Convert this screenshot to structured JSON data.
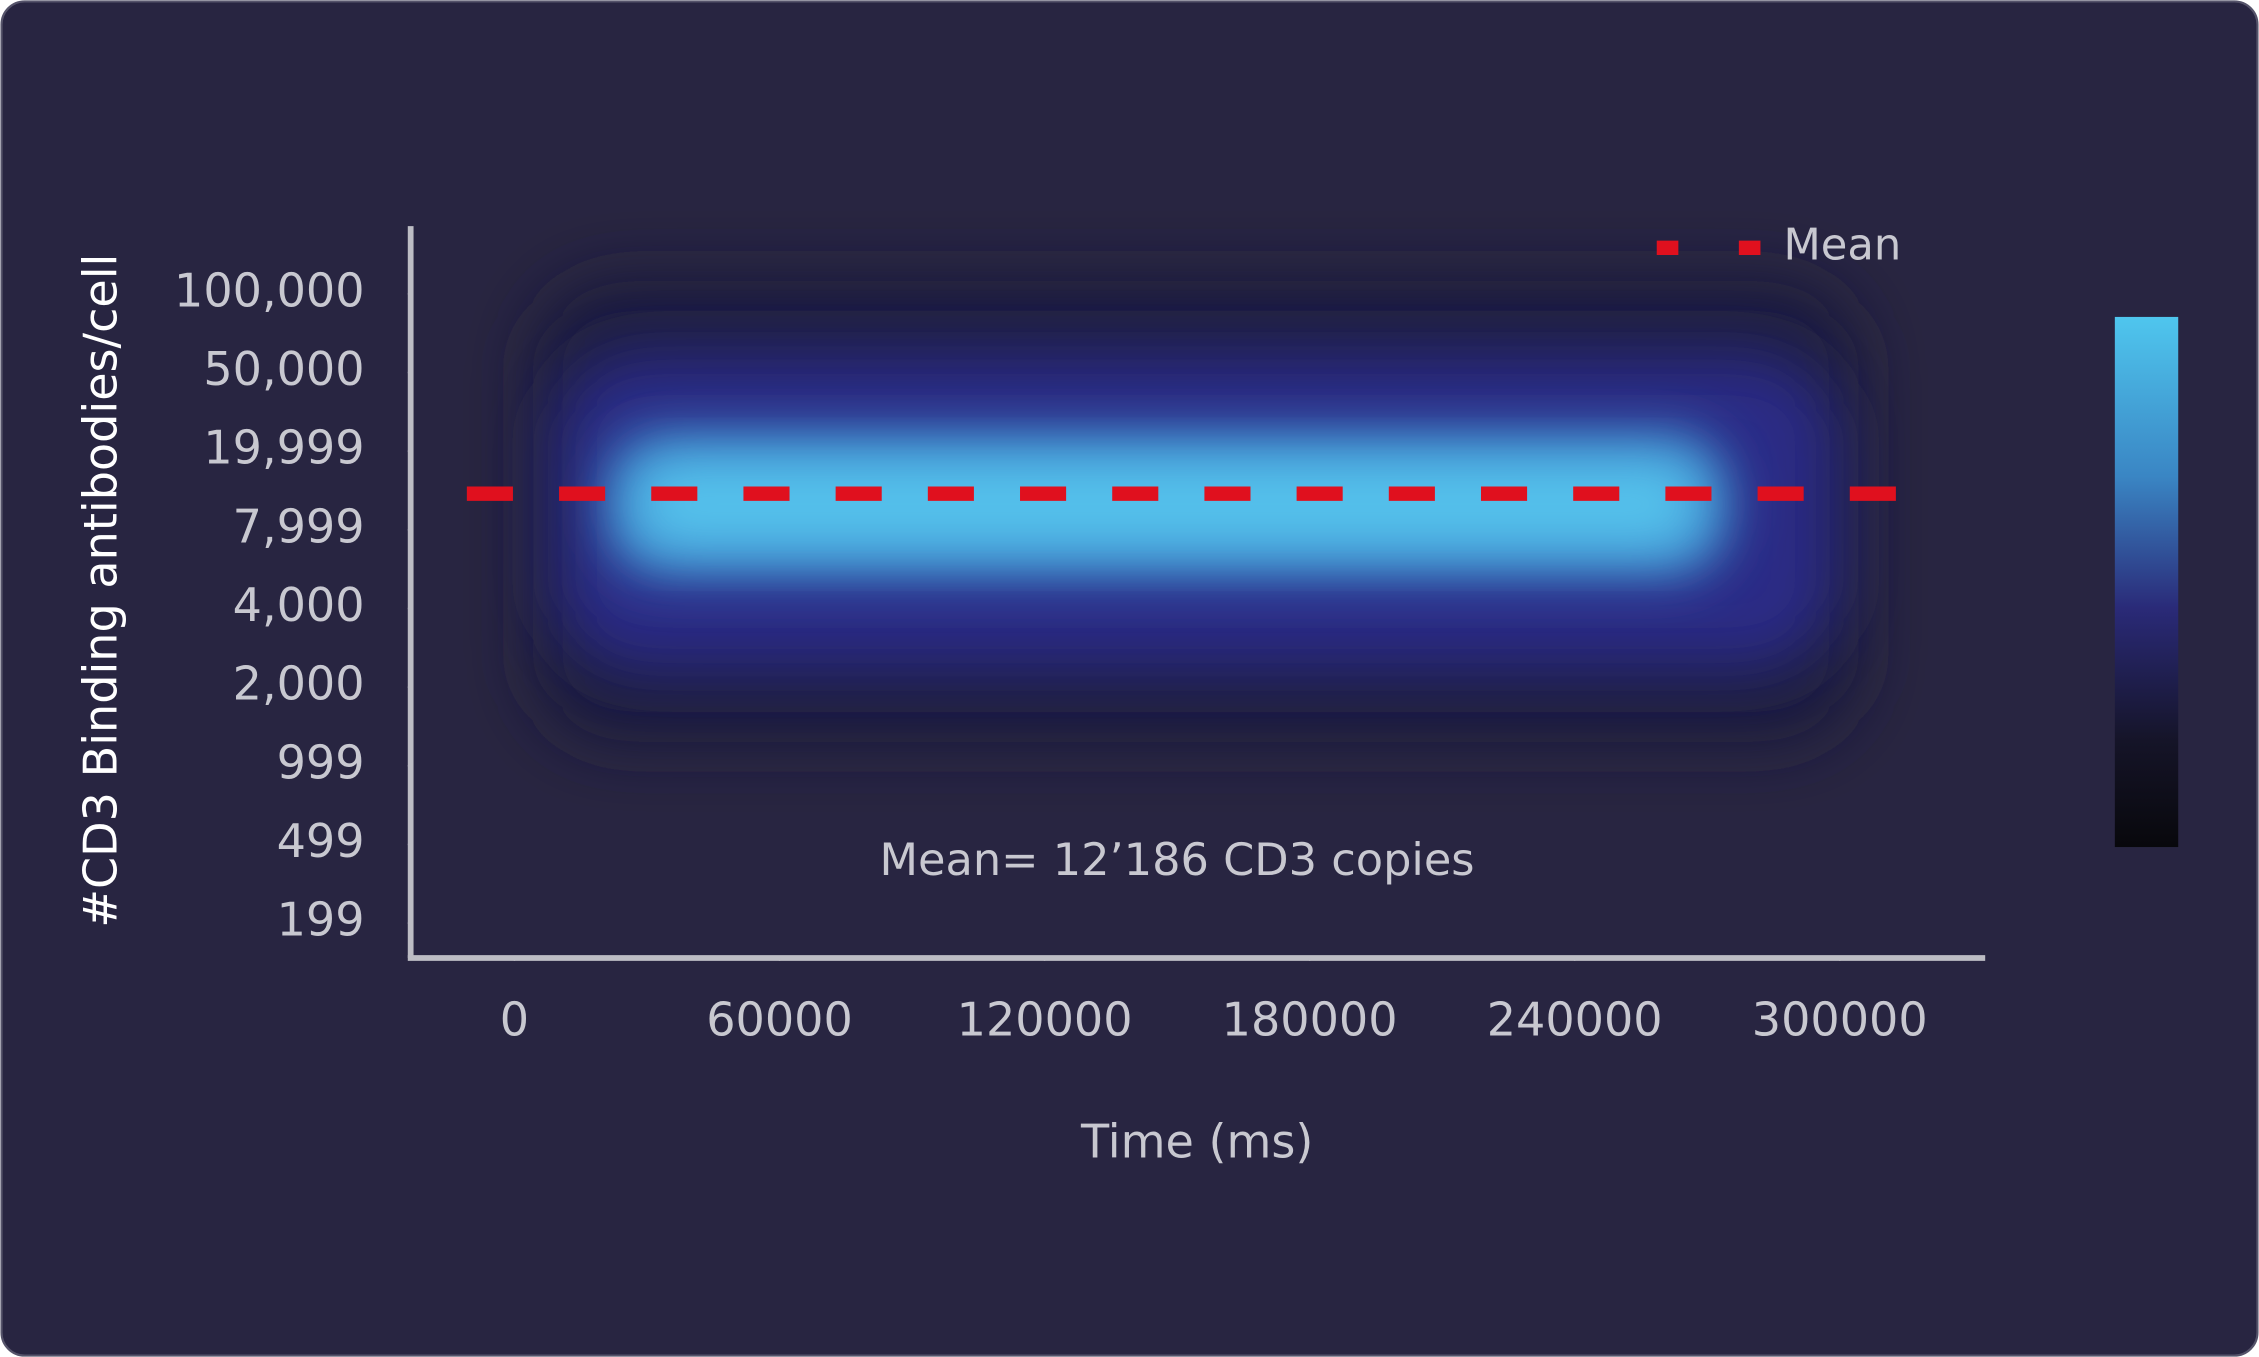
{
  "chart_data": {
    "type": "density",
    "x_label": "Time (ms)",
    "y_label": "#CD3 Binding antibodies/cell",
    "annotation": "Mean= 12’186 CD3 copies",
    "xlim": [
      -23500,
      332600
    ],
    "xticks": [
      0,
      60000,
      120000,
      180000,
      240000,
      300000
    ],
    "yticks": [
      {
        "value": 100000,
        "label": "100,000"
      },
      {
        "value": 50000,
        "label": "50,000"
      },
      {
        "value": 19999,
        "label": "19,999"
      },
      {
        "value": 7999,
        "label": "7,999"
      },
      {
        "value": 4000,
        "label": "4,000"
      },
      {
        "value": 2000,
        "label": "2,000"
      },
      {
        "value": 999,
        "label": "999"
      },
      {
        "value": 499,
        "label": "499"
      },
      {
        "value": 199,
        "label": "199"
      }
    ],
    "series": [
      {
        "name": "Mean",
        "color": "#e0101e",
        "value": 12186
      }
    ]
  }
}
